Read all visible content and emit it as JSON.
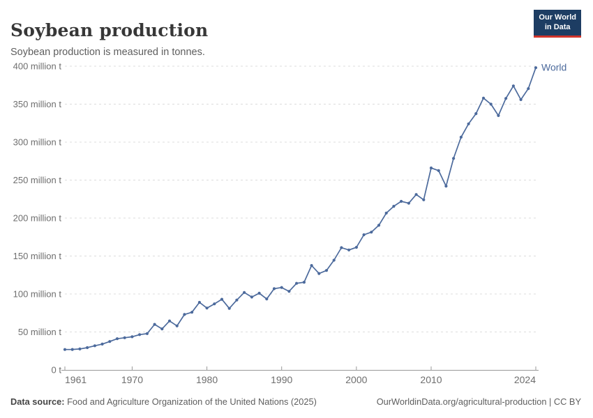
{
  "header": {
    "title": "Soybean production",
    "subtitle": "Soybean production is measured in tonnes."
  },
  "logo": {
    "line1": "Our World",
    "line2": "in Data",
    "bg_color": "#1d3d63",
    "bar_color": "#d1342b"
  },
  "footer": {
    "source_label": "Data source:",
    "source_text": " Food and Agriculture Organization of the United Nations (2025)",
    "credit": "OurWorldinData.org/agricultural-production | CC BY"
  },
  "chart_data": {
    "type": "line",
    "title": "Soybean production",
    "subtitle": "Soybean production is measured in tonnes.",
    "xlabel": "",
    "ylabel": "",
    "unit": "tonnes",
    "xlim": [
      1961,
      2024
    ],
    "ylim": [
      0,
      400
    ],
    "grid": "horizontal-dashed",
    "legend_position": "end-of-line",
    "x_ticks": [
      1961,
      1970,
      1980,
      1990,
      2000,
      2010,
      2024
    ],
    "y_ticks": [
      {
        "value": 0,
        "label": "0 t"
      },
      {
        "value": 50,
        "label": "50 million t"
      },
      {
        "value": 100,
        "label": "100 million t"
      },
      {
        "value": 150,
        "label": "150 million t"
      },
      {
        "value": 200,
        "label": "200 million t"
      },
      {
        "value": 250,
        "label": "250 million t"
      },
      {
        "value": 300,
        "label": "300 million t"
      },
      {
        "value": 350,
        "label": "350 million t"
      },
      {
        "value": 400,
        "label": "400 million t"
      }
    ],
    "colors": {
      "line": "#4c6a9c",
      "end_label": "#4c6a9c",
      "axis_text": "#6e6e6e",
      "grid_line": "#dcdcdc",
      "axis_line": "#999999"
    },
    "series": [
      {
        "name": "World",
        "color": "#4c6a9c",
        "x": [
          1961,
          1962,
          1963,
          1964,
          1965,
          1966,
          1967,
          1968,
          1969,
          1970,
          1971,
          1972,
          1973,
          1974,
          1975,
          1976,
          1977,
          1978,
          1979,
          1980,
          1981,
          1982,
          1983,
          1984,
          1985,
          1986,
          1987,
          1988,
          1989,
          1990,
          1991,
          1992,
          1993,
          1994,
          1995,
          1996,
          1997,
          1998,
          1999,
          2000,
          2001,
          2002,
          2003,
          2004,
          2005,
          2006,
          2007,
          2008,
          2009,
          2010,
          2011,
          2012,
          2013,
          2014,
          2015,
          2016,
          2017,
          2018,
          2019,
          2020,
          2021,
          2022,
          2023,
          2024
        ],
        "values": [
          26.9,
          27,
          27.6,
          29.4,
          31.8,
          34,
          37.4,
          41.1,
          42.4,
          43.7,
          46.5,
          47.8,
          60,
          54,
          64.5,
          58,
          73,
          76,
          89,
          81.5,
          87,
          93,
          81,
          92,
          102,
          96,
          101,
          93.5,
          107,
          108.5,
          103.5,
          114,
          115.5,
          137.5,
          127,
          131,
          144.5,
          161,
          158,
          161.5,
          178,
          181.5,
          190.5,
          206.5,
          215.5,
          222,
          219.5,
          231,
          224,
          266,
          262.5,
          242,
          278.5,
          306.5,
          324,
          337.5,
          358,
          350,
          335,
          357.5,
          374,
          356,
          370.5,
          398
        ]
      }
    ]
  }
}
